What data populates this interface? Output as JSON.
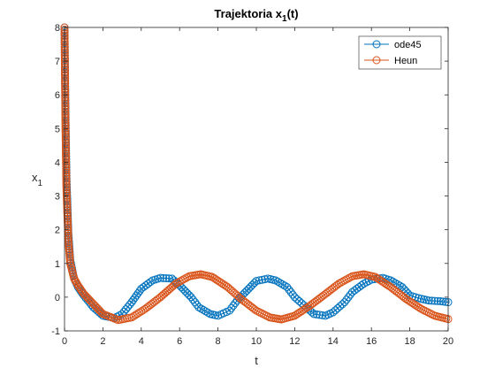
{
  "chart_data": {
    "type": "line",
    "title": "Trajektoria x",
    "title_sub": "1",
    "title_suffix": "(t)",
    "xlabel": "t",
    "ylabel": "x",
    "ylabel_sub": "1",
    "xlim": [
      0,
      20
    ],
    "ylim": [
      -1,
      8
    ],
    "xticks": [
      "0",
      "2",
      "4",
      "6",
      "8",
      "10",
      "12",
      "14",
      "16",
      "18",
      "20"
    ],
    "yticks": [
      "-1",
      "0",
      "1",
      "2",
      "3",
      "4",
      "5",
      "6",
      "7",
      "8"
    ],
    "grid": false,
    "legend_position": "top-right",
    "series": [
      {
        "name": "ode45",
        "color": "#0072BD",
        "marker": "circle",
        "x": [
          0,
          0.05,
          0.1,
          0.2,
          0.3,
          0.5,
          0.7,
          1.0,
          1.5,
          2.0,
          2.6,
          3.0,
          3.5,
          4.0,
          4.6,
          5.0,
          5.6,
          6.0,
          6.6,
          7.0,
          7.6,
          8.0,
          8.6,
          9.0,
          9.6,
          10.0,
          10.6,
          11.0,
          11.6,
          12.0,
          12.6,
          13.0,
          13.6,
          14.0,
          14.6,
          15.0,
          15.6,
          16.0,
          16.6,
          17.0,
          17.6,
          18.0,
          18.6,
          19.0,
          19.6,
          20.0
        ],
        "y": [
          8.0,
          5.5,
          3.6,
          1.9,
          1.1,
          0.55,
          0.3,
          0.05,
          -0.3,
          -0.55,
          -0.62,
          -0.5,
          -0.15,
          0.25,
          0.5,
          0.57,
          0.55,
          0.35,
          0.0,
          -0.3,
          -0.5,
          -0.55,
          -0.4,
          -0.1,
          0.25,
          0.48,
          0.55,
          0.5,
          0.3,
          0.0,
          -0.3,
          -0.5,
          -0.55,
          -0.45,
          -0.15,
          0.15,
          0.4,
          0.52,
          0.57,
          0.5,
          0.3,
          0.05,
          -0.05,
          -0.1,
          -0.12,
          -0.15
        ]
      },
      {
        "name": "Heun",
        "color": "#D95319",
        "marker": "circle",
        "x": [
          0,
          0.05,
          0.1,
          0.2,
          0.3,
          0.5,
          0.7,
          1.0,
          1.5,
          2.0,
          2.8,
          3.5,
          4.2,
          5.0,
          5.8,
          6.5,
          7.1,
          7.7,
          8.5,
          9.2,
          10.0,
          10.7,
          11.3,
          12.0,
          12.8,
          13.5,
          14.3,
          15.0,
          15.6,
          16.2,
          17.0,
          17.8,
          18.6,
          19.3,
          20.0
        ],
        "y": [
          8.0,
          5.0,
          3.2,
          1.7,
          1.0,
          0.55,
          0.35,
          0.1,
          -0.2,
          -0.5,
          -0.68,
          -0.6,
          -0.35,
          0.0,
          0.4,
          0.62,
          0.68,
          0.6,
          0.3,
          -0.05,
          -0.4,
          -0.6,
          -0.66,
          -0.55,
          -0.25,
          0.05,
          0.4,
          0.62,
          0.68,
          0.6,
          0.3,
          -0.05,
          -0.35,
          -0.55,
          -0.65
        ]
      }
    ]
  }
}
